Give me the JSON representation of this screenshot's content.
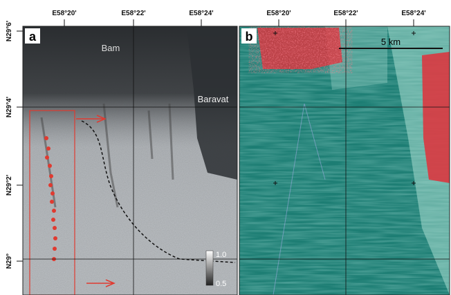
{
  "panels": [
    {
      "label": "a",
      "x_labels": [
        "E58°20'",
        "E58°22'",
        "E58°24'"
      ],
      "y_labels": [
        "N29°6'",
        "N29°4'",
        "N29°2'",
        "N29°"
      ],
      "places": [
        "Bam",
        "Baravat"
      ],
      "colorbar": {
        "max": "1.0",
        "min": "0.5"
      }
    },
    {
      "label": "b",
      "x_labels": [
        "E58°20'",
        "E58°22'",
        "E58°24'"
      ],
      "scale_bar": "5 km"
    }
  ]
}
